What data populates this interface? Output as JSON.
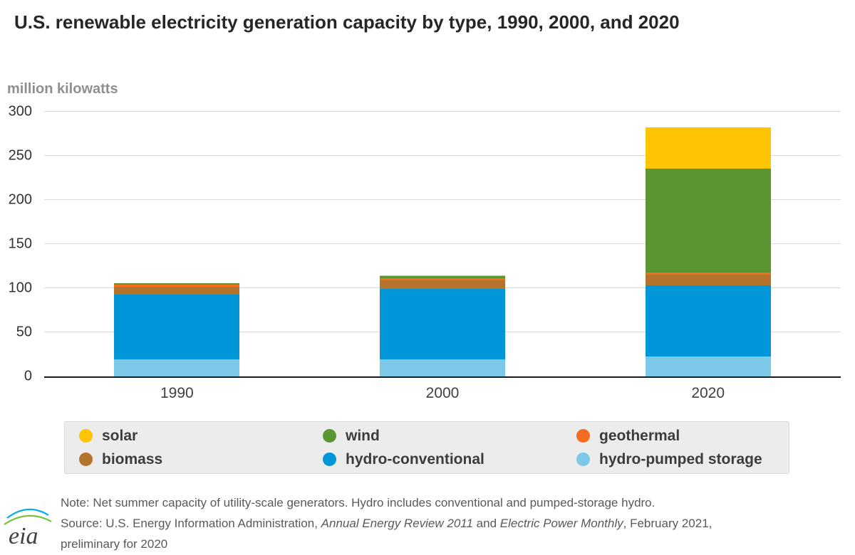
{
  "title": "U.S. renewable electricity generation capacity by type, 1990, 2000, and 2020",
  "unit_label": "million kilowatts",
  "chart_data": {
    "type": "bar",
    "stacked": true,
    "title": "U.S. renewable electricity generation capacity by type, 1990, 2000, and 2020",
    "categories": [
      "1990",
      "2000",
      "2020"
    ],
    "series": [
      {
        "name": "hydro-pumped storage",
        "color": "#7cc8e8",
        "values": [
          19.0,
          19.5,
          22.9
        ]
      },
      {
        "name": "hydro-conventional",
        "color": "#0096d7",
        "values": [
          73.9,
          79.4,
          80.0
        ]
      },
      {
        "name": "biomass",
        "color": "#b5742b",
        "values": [
          8.4,
          9.7,
          12.4
        ]
      },
      {
        "name": "geothermal",
        "color": "#f26d21",
        "values": [
          2.7,
          2.8,
          2.6
        ]
      },
      {
        "name": "wind",
        "color": "#5a9632",
        "values": [
          1.8,
          2.4,
          117.7
        ]
      },
      {
        "name": "solar",
        "color": "#ffc402",
        "values": [
          0.3,
          0.4,
          46.6
        ]
      }
    ],
    "xlabel": "",
    "ylabel": "million kilowatts",
    "ylim": [
      0,
      300
    ],
    "yticks": [
      0,
      50,
      100,
      150,
      200,
      250,
      300
    ],
    "grid": true,
    "legend_position": "bottom"
  },
  "legend": {
    "items": [
      {
        "label": "solar",
        "color": "#ffc402"
      },
      {
        "label": "wind",
        "color": "#5a9632"
      },
      {
        "label": "geothermal",
        "color": "#f26d21"
      },
      {
        "label": "biomass",
        "color": "#b5742b"
      },
      {
        "label": "hydro-conventional",
        "color": "#0096d7"
      },
      {
        "label": "hydro-pumped storage",
        "color": "#7cc8e8"
      }
    ]
  },
  "footer": {
    "note": "Note: Net summer capacity of utility-scale generators. Hydro includes conventional and pumped-storage hydro.",
    "source_parts": [
      {
        "text": "Source: U.S. Energy Information Administration, ",
        "italic": false
      },
      {
        "text": "Annual Energy Review 2011",
        "italic": true
      },
      {
        "text": " and ",
        "italic": false
      },
      {
        "text": "Electric Power Monthly",
        "italic": true
      },
      {
        "text": ", February 2021,",
        "italic": false
      }
    ],
    "source_line2": "preliminary for 2020",
    "logo_text": "eia"
  }
}
